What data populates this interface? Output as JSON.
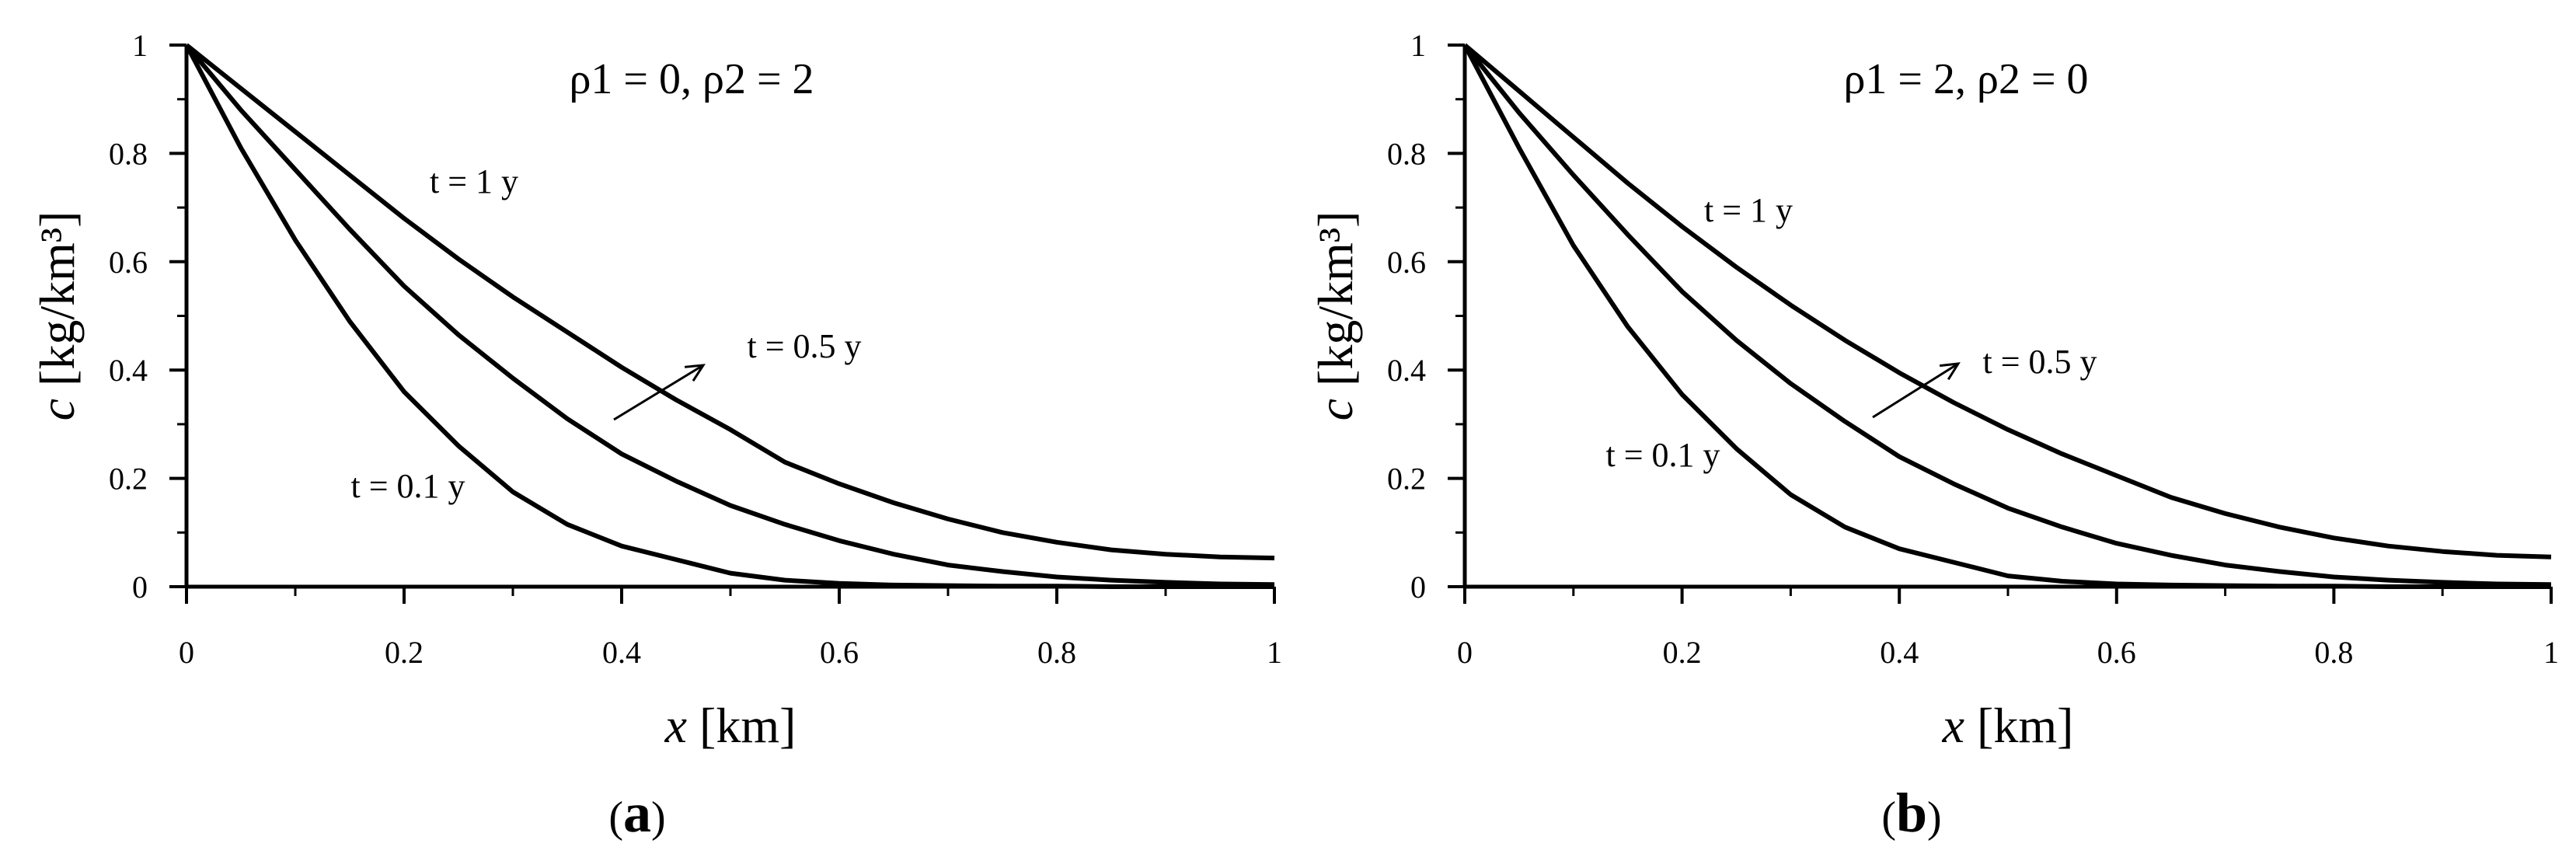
{
  "chart_data": [
    {
      "type": "line",
      "panel_label_open": "(",
      "panel_label_letter": "a",
      "panel_label_close": ")",
      "parameter_text": "ρ1 = 0, ρ2 = 2",
      "xlabel_var": "x",
      "xlabel_unit": " [km]",
      "ylabel_var": "c",
      "ylabel_unit": " [kg/km³]",
      "xlim": [
        0,
        1
      ],
      "ylim": [
        0,
        1
      ],
      "x_ticks": [
        "0",
        "0.2",
        "0.4",
        "0.6",
        "0.8",
        "1"
      ],
      "y_ticks": [
        "0",
        "0.2",
        "0.4",
        "0.6",
        "0.8",
        "1"
      ],
      "grid": false,
      "x": [
        0,
        0.05,
        0.1,
        0.15,
        0.2,
        0.25,
        0.3,
        0.35,
        0.4,
        0.45,
        0.5,
        0.55,
        0.6,
        0.65,
        0.7,
        0.75,
        0.8,
        0.85,
        0.9,
        0.95,
        1.0
      ],
      "series": [
        {
          "label": "t = 1 y",
          "values": [
            1.0,
            0.92,
            0.84,
            0.76,
            0.68,
            0.605,
            0.535,
            0.47,
            0.405,
            0.345,
            0.29,
            0.23,
            0.19,
            0.155,
            0.125,
            0.1,
            0.082,
            0.068,
            0.06,
            0.055,
            0.053
          ]
        },
        {
          "label": "t = 0.5 y",
          "values": [
            1.0,
            0.88,
            0.77,
            0.66,
            0.555,
            0.465,
            0.385,
            0.31,
            0.245,
            0.195,
            0.15,
            0.115,
            0.085,
            0.06,
            0.04,
            0.028,
            0.018,
            0.012,
            0.008,
            0.005,
            0.004
          ]
        },
        {
          "label": "t = 0.1 y",
          "values": [
            1.0,
            0.81,
            0.64,
            0.49,
            0.36,
            0.26,
            0.175,
            0.115,
            0.075,
            0.05,
            0.025,
            0.012,
            0.006,
            0.003,
            0.002,
            0.001,
            0.001,
            0.0,
            0.0,
            0.0,
            0.0
          ]
        }
      ],
      "annotations": [
        {
          "text": "t = 1 y"
        },
        {
          "text": "t = 0.5 y"
        },
        {
          "text": "t = 0.1 y"
        }
      ]
    },
    {
      "type": "line",
      "panel_label_open": "(",
      "panel_label_letter": "b",
      "panel_label_close": ")",
      "parameter_text": "ρ1 = 2, ρ2 = 0",
      "xlabel_var": "x",
      "xlabel_unit": " [km]",
      "ylabel_var": "c",
      "ylabel_unit": " [kg/km³]",
      "xlim": [
        0,
        1
      ],
      "ylim": [
        0,
        1
      ],
      "x_ticks": [
        "0",
        "0.2",
        "0.4",
        "0.6",
        "0.8",
        "1"
      ],
      "y_ticks": [
        "0",
        "0.2",
        "0.4",
        "0.6",
        "0.8",
        "1"
      ],
      "grid": false,
      "x": [
        0,
        0.05,
        0.1,
        0.15,
        0.2,
        0.25,
        0.3,
        0.35,
        0.4,
        0.45,
        0.5,
        0.55,
        0.6,
        0.65,
        0.7,
        0.75,
        0.8,
        0.85,
        0.9,
        0.95,
        1.0
      ],
      "series": [
        {
          "label": "t = 1 y",
          "values": [
            1.0,
            0.915,
            0.83,
            0.745,
            0.665,
            0.59,
            0.52,
            0.455,
            0.395,
            0.34,
            0.29,
            0.245,
            0.205,
            0.165,
            0.135,
            0.11,
            0.09,
            0.075,
            0.065,
            0.058,
            0.055
          ]
        },
        {
          "label": "t = 0.5 y",
          "values": [
            1.0,
            0.875,
            0.76,
            0.65,
            0.545,
            0.455,
            0.375,
            0.305,
            0.24,
            0.19,
            0.145,
            0.11,
            0.08,
            0.058,
            0.04,
            0.028,
            0.018,
            0.012,
            0.008,
            0.005,
            0.004
          ]
        },
        {
          "label": "t = 0.1 y",
          "values": [
            1.0,
            0.81,
            0.63,
            0.48,
            0.355,
            0.255,
            0.17,
            0.11,
            0.07,
            0.045,
            0.02,
            0.01,
            0.005,
            0.003,
            0.002,
            0.001,
            0.001,
            0.0,
            0.0,
            0.0,
            0.0
          ]
        }
      ],
      "annotations": [
        {
          "text": "t = 1 y"
        },
        {
          "text": "t = 0.5 y"
        },
        {
          "text": "t = 0.1 y"
        }
      ]
    }
  ]
}
